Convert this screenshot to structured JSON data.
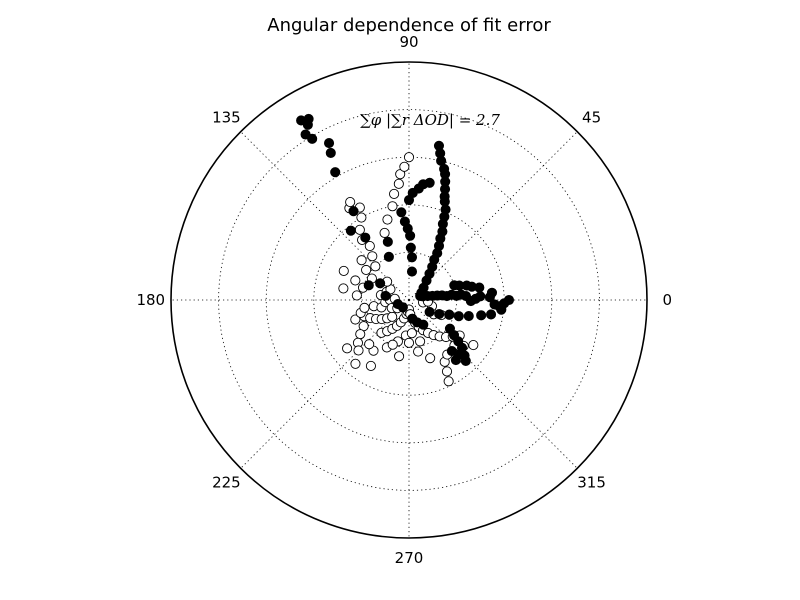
{
  "chart_data": {
    "type": "scatter",
    "projection": "polar",
    "title": "Angular dependence of fit error",
    "annotation": "∑φ |∑r ΔOD| = 2.7",
    "theta_tick_labels": [
      "0",
      "45",
      "90",
      "135",
      "180",
      "225",
      "270",
      "315"
    ],
    "theta_ticks_deg": [
      0,
      45,
      90,
      135,
      180,
      225,
      270,
      315
    ],
    "r_max": 1.0,
    "r_gridlines": [
      0.2,
      0.4,
      0.6,
      0.8
    ],
    "grid": true,
    "colors": {
      "filled": "#000000",
      "open_fill": "#ffffff",
      "edge": "#000000",
      "frame": "#000000"
    },
    "series": [
      {
        "name": "filled",
        "style": "filled",
        "points": [
          {
            "theta": 0,
            "r": 0.42
          },
          {
            "theta": -2,
            "r": 0.4
          },
          {
            "theta": -4,
            "r": 0.38
          },
          {
            "theta": -6,
            "r": 0.39
          },
          {
            "theta": -3,
            "r": 0.36
          },
          {
            "theta": 2,
            "r": 0.34
          },
          {
            "theta": 5,
            "r": 0.35
          },
          {
            "theta": 3,
            "r": 0.3
          },
          {
            "theta": 1,
            "r": 0.28
          },
          {
            "theta": -1,
            "r": 0.26
          },
          {
            "theta": 4,
            "r": 0.24
          },
          {
            "theta": 6,
            "r": 0.22
          },
          {
            "theta": 5,
            "r": 0.2
          },
          {
            "theta": 7,
            "r": 0.18
          },
          {
            "theta": 6,
            "r": 0.16
          },
          {
            "theta": 8,
            "r": 0.14
          },
          {
            "theta": 9,
            "r": 0.12
          },
          {
            "theta": 10,
            "r": 0.1
          },
          {
            "theta": 12,
            "r": 0.08
          },
          {
            "theta": 15,
            "r": 0.06
          },
          {
            "theta": 20,
            "r": 0.05
          },
          {
            "theta": 30,
            "r": 0.06
          },
          {
            "theta": 40,
            "r": 0.08
          },
          {
            "theta": 48,
            "r": 0.11
          },
          {
            "theta": 52,
            "r": 0.14
          },
          {
            "theta": 55,
            "r": 0.17
          },
          {
            "theta": 58,
            "r": 0.2
          },
          {
            "theta": 59,
            "r": 0.23
          },
          {
            "theta": 61,
            "r": 0.26
          },
          {
            "theta": 63,
            "r": 0.29
          },
          {
            "theta": 64,
            "r": 0.32
          },
          {
            "theta": 66,
            "r": 0.35
          },
          {
            "theta": 67,
            "r": 0.38
          },
          {
            "theta": 68,
            "r": 0.41
          },
          {
            "theta": 70,
            "r": 0.44
          },
          {
            "theta": 71,
            "r": 0.46
          },
          {
            "theta": 72,
            "r": 0.49
          },
          {
            "theta": 73,
            "r": 0.52
          },
          {
            "theta": 74,
            "r": 0.55
          },
          {
            "theta": 75,
            "r": 0.57
          },
          {
            "theta": 77,
            "r": 0.6
          },
          {
            "theta": 78,
            "r": 0.63
          },
          {
            "theta": 79,
            "r": 0.66
          },
          {
            "theta": 84,
            "r": 0.12
          },
          {
            "theta": 86,
            "r": 0.18
          },
          {
            "theta": 88,
            "r": 0.22
          },
          {
            "theta": 89,
            "r": 0.27
          },
          {
            "theta": 91,
            "r": 0.3
          },
          {
            "theta": 93,
            "r": 0.33
          },
          {
            "theta": 95,
            "r": 0.37
          },
          {
            "theta": 90,
            "r": 0.42
          },
          {
            "theta": 88,
            "r": 0.45
          },
          {
            "theta": 85,
            "r": 0.47
          },
          {
            "theta": 83,
            "r": 0.49
          },
          {
            "theta": 80,
            "r": 0.5
          },
          {
            "theta": 115,
            "r": 0.2
          },
          {
            "theta": 110,
            "r": 0.26
          },
          {
            "theta": 125,
            "r": 0.32
          },
          {
            "theta": 130,
            "r": 0.38
          },
          {
            "theta": 122,
            "r": 0.44
          },
          {
            "theta": 120,
            "r": 0.62
          },
          {
            "theta": 118,
            "r": 0.7
          },
          {
            "theta": 117,
            "r": 0.74
          },
          {
            "theta": 121,
            "r": 0.79
          },
          {
            "theta": 122,
            "r": 0.82
          },
          {
            "theta": 120,
            "r": 0.85
          },
          {
            "theta": 119,
            "r": 0.87
          },
          {
            "theta": 121,
            "r": 0.88
          },
          {
            "theta": 160,
            "r": 0.18
          },
          {
            "theta": 150,
            "r": 0.14
          },
          {
            "theta": 170,
            "r": 0.1
          },
          {
            "theta": 200,
            "r": 0.05
          },
          {
            "theta": 230,
            "r": 0.04
          },
          {
            "theta": -10,
            "r": 0.35
          },
          {
            "theta": -12,
            "r": 0.31
          },
          {
            "theta": -15,
            "r": 0.26
          },
          {
            "theta": -18,
            "r": 0.22
          },
          {
            "theta": -20,
            "r": 0.18
          },
          {
            "theta": -25,
            "r": 0.14
          },
          {
            "theta": -30,
            "r": 0.1
          },
          {
            "theta": -35,
            "r": 0.21
          },
          {
            "theta": -38,
            "r": 0.24
          },
          {
            "theta": -40,
            "r": 0.27
          },
          {
            "theta": -42,
            "r": 0.3
          },
          {
            "theta": -45,
            "r": 0.33
          },
          {
            "theta": -47,
            "r": 0.35
          },
          {
            "theta": -48,
            "r": 0.31
          },
          {
            "theta": -50,
            "r": 0.28
          },
          {
            "theta": -52,
            "r": 0.32
          },
          {
            "theta": -60,
            "r": 0.12
          },
          {
            "theta": -70,
            "r": 0.1
          },
          {
            "theta": -80,
            "r": 0.08
          },
          {
            "theta": 10,
            "r": 0.3
          },
          {
            "theta": 12,
            "r": 0.27
          },
          {
            "theta": 14,
            "r": 0.25
          },
          {
            "theta": 16,
            "r": 0.22
          },
          {
            "theta": 18,
            "r": 0.2
          }
        ]
      },
      {
        "name": "open",
        "style": "open",
        "points": [
          {
            "theta": 200,
            "r": 0.2
          },
          {
            "theta": 205,
            "r": 0.18
          },
          {
            "theta": 210,
            "r": 0.16
          },
          {
            "theta": 215,
            "r": 0.14
          },
          {
            "theta": 220,
            "r": 0.12
          },
          {
            "theta": 225,
            "r": 0.1
          },
          {
            "theta": 190,
            "r": 0.15
          },
          {
            "theta": 195,
            "r": 0.12
          },
          {
            "theta": 185,
            "r": 0.1
          },
          {
            "theta": 180,
            "r": 0.08
          },
          {
            "theta": 175,
            "r": 0.06
          },
          {
            "theta": 230,
            "r": 0.18
          },
          {
            "theta": 235,
            "r": 0.16
          },
          {
            "theta": 240,
            "r": 0.14
          },
          {
            "theta": 245,
            "r": 0.12
          },
          {
            "theta": 250,
            "r": 0.1
          },
          {
            "theta": 255,
            "r": 0.08
          },
          {
            "theta": 260,
            "r": 0.06
          },
          {
            "theta": 265,
            "r": 0.05
          },
          {
            "theta": 270,
            "r": 0.04
          },
          {
            "theta": 275,
            "r": 0.06
          },
          {
            "theta": 280,
            "r": 0.08
          },
          {
            "theta": 285,
            "r": 0.1
          },
          {
            "theta": 290,
            "r": 0.12
          },
          {
            "theta": 295,
            "r": 0.14
          },
          {
            "theta": 300,
            "r": 0.16
          },
          {
            "theta": 305,
            "r": 0.18
          },
          {
            "theta": 310,
            "r": 0.2
          },
          {
            "theta": 315,
            "r": 0.22
          },
          {
            "theta": 320,
            "r": 0.24
          },
          {
            "theta": 325,
            "r": 0.26
          },
          {
            "theta": 300,
            "r": 0.3
          },
          {
            "theta": 298,
            "r": 0.34
          },
          {
            "theta": 296,
            "r": 0.38
          },
          {
            "theta": 210,
            "r": 0.22
          },
          {
            "theta": 215,
            "r": 0.25
          },
          {
            "theta": 220,
            "r": 0.28
          },
          {
            "theta": 225,
            "r": 0.3
          },
          {
            "theta": 200,
            "r": 0.24
          },
          {
            "theta": 195,
            "r": 0.21
          },
          {
            "theta": 190,
            "r": 0.19
          },
          {
            "theta": 170,
            "r": 0.12
          },
          {
            "theta": 160,
            "r": 0.1
          },
          {
            "theta": 150,
            "r": 0.09
          },
          {
            "theta": 140,
            "r": 0.12
          },
          {
            "theta": 135,
            "r": 0.2
          },
          {
            "theta": 130,
            "r": 0.24
          },
          {
            "theta": 126,
            "r": 0.28
          },
          {
            "theta": 128,
            "r": 0.32
          },
          {
            "theta": 125,
            "r": 0.36
          },
          {
            "theta": 120,
            "r": 0.4
          },
          {
            "theta": 118,
            "r": 0.44
          },
          {
            "theta": 123,
            "r": 0.46
          },
          {
            "theta": 121,
            "r": 0.48
          },
          {
            "theta": 110,
            "r": 0.3
          },
          {
            "theta": 105,
            "r": 0.35
          },
          {
            "theta": 100,
            "r": 0.4
          },
          {
            "theta": 98,
            "r": 0.45
          },
          {
            "theta": 95,
            "r": 0.49
          },
          {
            "theta": 94,
            "r": 0.53
          },
          {
            "theta": 92,
            "r": 0.56
          },
          {
            "theta": 90,
            "r": 0.6
          },
          {
            "theta": 150,
            "r": 0.18
          },
          {
            "theta": 145,
            "r": 0.22
          },
          {
            "theta": 140,
            "r": 0.26
          },
          {
            "theta": 156,
            "r": 0.3
          },
          {
            "theta": 160,
            "r": 0.24
          },
          {
            "theta": 165,
            "r": 0.2
          },
          {
            "theta": 170,
            "r": 0.28
          },
          {
            "theta": 175,
            "r": 0.22
          },
          {
            "theta": 235,
            "r": 0.26
          },
          {
            "theta": 245,
            "r": 0.22
          },
          {
            "theta": 255,
            "r": 0.18
          },
          {
            "theta": 265,
            "r": 0.15
          },
          {
            "theta": 275,
            "r": 0.14
          },
          {
            "theta": 285,
            "r": 0.18
          },
          {
            "theta": 330,
            "r": 0.12
          },
          {
            "theta": 335,
            "r": 0.15
          },
          {
            "theta": 340,
            "r": 0.18
          },
          {
            "theta": 345,
            "r": 0.1
          },
          {
            "theta": 350,
            "r": 0.06
          },
          {
            "theta": 355,
            "r": 0.08
          },
          {
            "theta": 205,
            "r": 0.08
          },
          {
            "theta": 215,
            "r": 0.06
          },
          {
            "theta": 250,
            "r": 0.2
          },
          {
            "theta": 260,
            "r": 0.24
          },
          {
            "theta": 270,
            "r": 0.18
          },
          {
            "theta": 280,
            "r": 0.22
          },
          {
            "theta": 290,
            "r": 0.26
          },
          {
            "theta": 305,
            "r": 0.28
          },
          {
            "theta": 310,
            "r": 0.32
          },
          {
            "theta": 315,
            "r": 0.27
          },
          {
            "theta": 320,
            "r": 0.3
          },
          {
            "theta": 325,
            "r": 0.33
          },
          {
            "theta": 240,
            "r": 0.32
          },
          {
            "theta": 230,
            "r": 0.35
          },
          {
            "theta": 228,
            "r": 0.25
          },
          {
            "theta": 218,
            "r": 0.33
          }
        ]
      }
    ]
  }
}
